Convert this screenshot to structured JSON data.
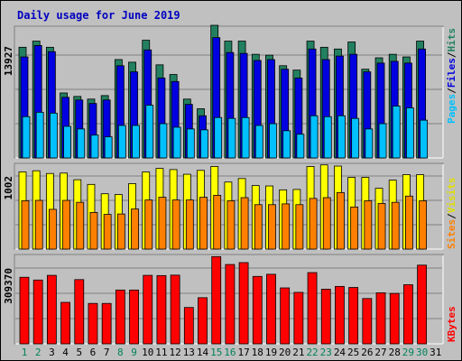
{
  "chart_data": [
    {
      "type": "bar",
      "title": "Daily usage for June 2019",
      "categories": [
        "1",
        "2",
        "3",
        "4",
        "5",
        "6",
        "7",
        "8",
        "9",
        "10",
        "11",
        "12",
        "13",
        "14",
        "15",
        "16",
        "17",
        "18",
        "19",
        "20",
        "21",
        "22",
        "23",
        "24",
        "25",
        "26",
        "27",
        "28",
        "29",
        "30",
        "31"
      ],
      "weekend_days": [
        "1",
        "2",
        "8",
        "9",
        "15",
        "16",
        "22",
        "23",
        "29",
        "30"
      ],
      "ylabel_ticks": [
        "13927"
      ],
      "ylim": [
        0,
        15000
      ],
      "series": [
        {
          "name": "Hits",
          "color": "#228060",
          "values": [
            12600,
            13300,
            12600,
            7400,
            7000,
            6700,
            7100,
            11200,
            10900,
            13400,
            10600,
            9500,
            6700,
            5600,
            15100,
            13300,
            13300,
            11800,
            11700,
            10500,
            10000,
            13300,
            12600,
            12400,
            13200,
            10100,
            11400,
            11800,
            11500,
            13300,
            0
          ]
        },
        {
          "name": "Files",
          "color": "#0000e0",
          "values": [
            11500,
            12800,
            12100,
            6900,
            6600,
            6200,
            6600,
            10500,
            9800,
            12300,
            9100,
            8700,
            6100,
            4800,
            13700,
            12000,
            11900,
            11100,
            11200,
            10100,
            9100,
            12400,
            11200,
            11600,
            11800,
            9800,
            10800,
            11000,
            10800,
            12400,
            0
          ]
        },
        {
          "name": "Pages",
          "color": "#00c0ff",
          "values": [
            4700,
            5200,
            5100,
            3600,
            3300,
            2600,
            2400,
            3700,
            3700,
            6000,
            3900,
            3500,
            3300,
            3200,
            4600,
            4500,
            4600,
            3700,
            3900,
            3100,
            2700,
            4800,
            4700,
            4800,
            4500,
            3300,
            3900,
            5900,
            5700,
            4300,
            0
          ]
        }
      ]
    },
    {
      "type": "bar",
      "ylabel_ticks": [
        "1002"
      ],
      "ylim": [
        0,
        1100
      ],
      "series": [
        {
          "name": "Visits",
          "color": "#ffff00",
          "values": [
            990,
            1005,
            970,
            975,
            890,
            830,
            710,
            700,
            840,
            990,
            1035,
            1020,
            960,
            1010,
            1060,
            860,
            905,
            815,
            810,
            760,
            765,
            1060,
            1080,
            1065,
            920,
            920,
            780,
            885,
            955,
            955,
            0
          ]
        },
        {
          "name": "Sites",
          "color": "#ff8000",
          "values": [
            620,
            625,
            510,
            625,
            600,
            470,
            445,
            450,
            515,
            630,
            665,
            630,
            630,
            665,
            690,
            620,
            660,
            570,
            570,
            580,
            570,
            650,
            660,
            725,
            540,
            620,
            585,
            600,
            680,
            620,
            0
          ]
        }
      ]
    },
    {
      "type": "bar",
      "ylabel_ticks": [
        "309370"
      ],
      "ylim": [
        0,
        420000
      ],
      "series": [
        {
          "name": "KBytes",
          "color": "#ff0000",
          "values": [
            313000,
            300000,
            322000,
            195000,
            302000,
            190000,
            190000,
            253000,
            253000,
            322000,
            321000,
            323000,
            171000,
            217000,
            410000,
            373000,
            382000,
            317000,
            327000,
            263000,
            242000,
            335000,
            257000,
            270000,
            265000,
            213000,
            240000,
            237000,
            278000,
            370000,
            0
          ]
        }
      ]
    }
  ],
  "legend": {
    "panel1": {
      "pages": "Pages",
      "sep1": "/",
      "files": "Files",
      "sep2": "/",
      "hits": "Hits",
      "sep_color": "#000000"
    },
    "panel2": {
      "sites": "Sites",
      "sep1": "/",
      "visits": "Visits"
    },
    "panel3": {
      "kbytes": "KBytes"
    }
  },
  "colors": {
    "background": "#c0c0c0",
    "title": "#0000c0",
    "weekday_label": "#000000",
    "weekend_label": "#00805c",
    "pages_label": "#00c0ff",
    "files_label": "#0000e0",
    "hits_label": "#228060",
    "visits_label": "#e0e000",
    "sites_label": "#ff8000",
    "kbytes_label": "#ff0000"
  }
}
